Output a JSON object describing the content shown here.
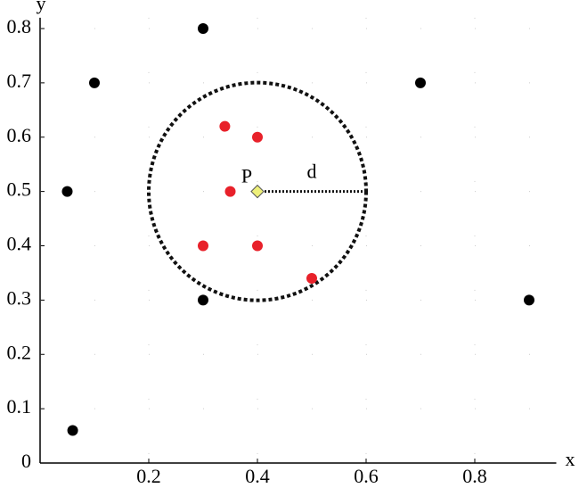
{
  "chart_data": {
    "type": "scatter",
    "x_label": "x",
    "y_label": "y",
    "xlim": [
      0,
      0.95
    ],
    "ylim": [
      0,
      0.82
    ],
    "xticks": [
      0.2,
      0.4,
      0.6,
      0.8
    ],
    "yticks": [
      0,
      0.1,
      0.2,
      0.3,
      0.4,
      0.5,
      0.6,
      0.7,
      0.8
    ],
    "grid": true,
    "series": [
      {
        "color": "#000000",
        "x": [
          0.3,
          0.1,
          0.7,
          0.05,
          0.3,
          0.9,
          0.06
        ],
        "y": [
          0.8,
          0.7,
          0.7,
          0.5,
          0.3,
          0.3,
          0.06
        ]
      },
      {
        "color": "#e8212a",
        "x": [
          0.34,
          0.4,
          0.35,
          0.3,
          0.4,
          0.5
        ],
        "y": [
          0.62,
          0.6,
          0.5,
          0.4,
          0.4,
          0.34
        ]
      }
    ],
    "point": {
      "label": "P",
      "x": 0.4,
      "y": 0.5,
      "color": "#eef07a"
    },
    "radius": {
      "label": "d",
      "value": 0.2
    }
  }
}
